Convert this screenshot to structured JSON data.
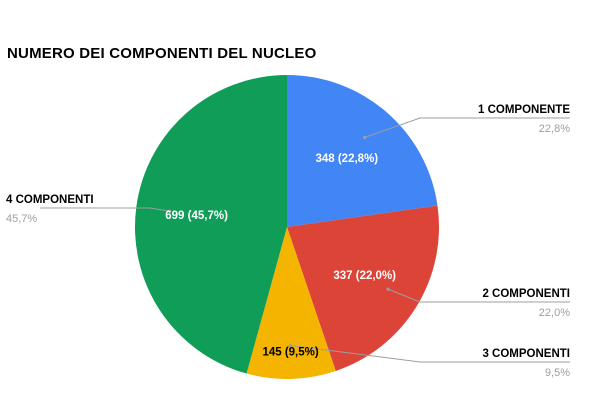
{
  "chart_data": {
    "type": "pie",
    "title": "NUMERO DEI COMPONENTI DEL NUCLEO",
    "slices": [
      {
        "name": "1 COMPONENTE",
        "value": 348,
        "percent_label": "22,8%",
        "data_label": "348 (22,8%)",
        "color": "#4285F4",
        "label_color": "#ffffff",
        "label_side": "right"
      },
      {
        "name": "2 COMPONENTI",
        "value": 337,
        "percent_label": "22,0%",
        "data_label": "337 (22,0%)",
        "color": "#DB4437",
        "label_color": "#ffffff",
        "label_side": "right"
      },
      {
        "name": "3 COMPONENTI",
        "value": 145,
        "percent_label": "9,5%",
        "data_label": "145 (9,5%)",
        "color": "#F4B400",
        "label_color": "#000000",
        "label_side": "right"
      },
      {
        "name": "4 COMPONENTI",
        "value": 699,
        "percent_label": "45,7%",
        "data_label": "699 (45,7%)",
        "color": "#0F9D58",
        "label_color": "#ffffff",
        "label_side": "left"
      }
    ],
    "start": "12 o'clock",
    "direction": "clockwise",
    "legend": "callout labels with leader lines"
  }
}
